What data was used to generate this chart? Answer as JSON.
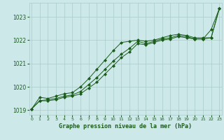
{
  "background_color": "#cce8e8",
  "grid_color": "#aacccc",
  "line_color": "#1a5c1a",
  "title": "Graphe pression niveau de la mer (hPa)",
  "xlabel_ticks": [
    0,
    1,
    2,
    3,
    4,
    5,
    6,
    7,
    8,
    9,
    10,
    11,
    12,
    13,
    14,
    15,
    16,
    17,
    18,
    19,
    20,
    21,
    22,
    23
  ],
  "ylim": [
    1018.8,
    1023.6
  ],
  "yticks": [
    1019,
    1020,
    1021,
    1022,
    1023
  ],
  "series": [
    [
      1019.05,
      1019.55,
      1019.5,
      1019.6,
      1019.7,
      1019.75,
      1020.0,
      1020.35,
      1020.75,
      1021.15,
      1021.55,
      1021.9,
      1021.95,
      1022.0,
      1021.95,
      1022.0,
      1022.1,
      1022.2,
      1022.25,
      1022.2,
      1022.1,
      1022.1,
      1022.1,
      1023.35
    ],
    [
      1019.05,
      1019.4,
      1019.45,
      1019.5,
      1019.6,
      1019.65,
      1019.8,
      1020.1,
      1020.4,
      1020.75,
      1021.1,
      1021.4,
      1021.65,
      1021.95,
      1021.85,
      1021.95,
      1022.05,
      1022.1,
      1022.2,
      1022.15,
      1022.05,
      1022.05,
      1022.45,
      1023.35
    ],
    [
      1019.05,
      1019.4,
      1019.4,
      1019.45,
      1019.55,
      1019.6,
      1019.7,
      1019.95,
      1020.2,
      1020.55,
      1020.9,
      1021.25,
      1021.5,
      1021.85,
      1021.8,
      1021.9,
      1022.0,
      1022.05,
      1022.15,
      1022.1,
      1022.05,
      1022.05,
      1022.1,
      1023.35
    ]
  ]
}
